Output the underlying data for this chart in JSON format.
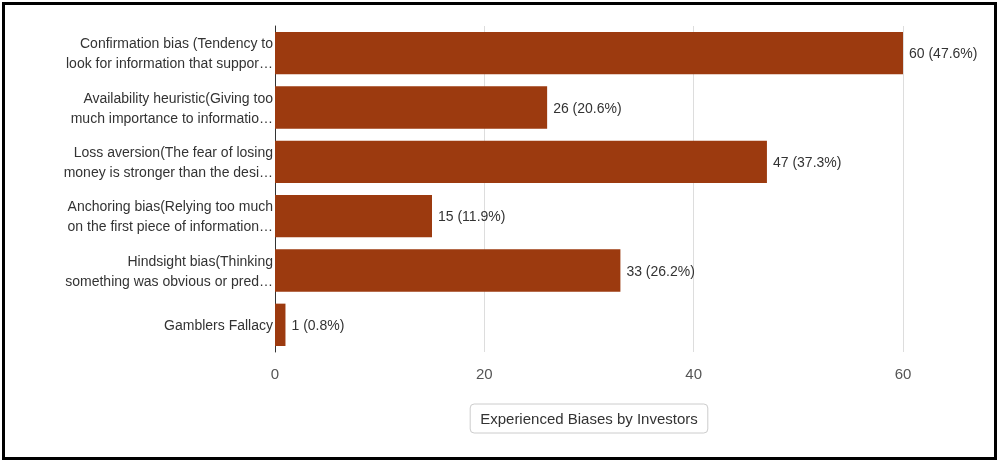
{
  "chart_data": {
    "type": "bar",
    "orientation": "horizontal",
    "xlabel": "Experienced Biases by Investors",
    "categories": [
      "Confirmation bias (Tendency to\nlook for information that suppor…",
      "Availability heuristic(Giving too\nmuch importance to informatio…",
      "Loss aversion(The fear of losing\nmoney is stronger than the desi…",
      "Anchoring bias(Relying too much\non the first piece of information…",
      "Hindsight bias(Thinking\nsomething was obvious or pred…",
      "Gamblers Fallacy"
    ],
    "values": [
      60,
      26,
      47,
      15,
      33,
      1
    ],
    "value_labels": [
      "60 (47.6%)",
      "26 (20.6%)",
      "47 (37.3%)",
      "15 (11.9%)",
      "33 (26.2%)",
      "1 (0.8%)"
    ],
    "color": "#9c3a0f",
    "xlim": [
      0,
      60
    ],
    "xticks": [
      0,
      20,
      40,
      60
    ],
    "grid": "x"
  }
}
